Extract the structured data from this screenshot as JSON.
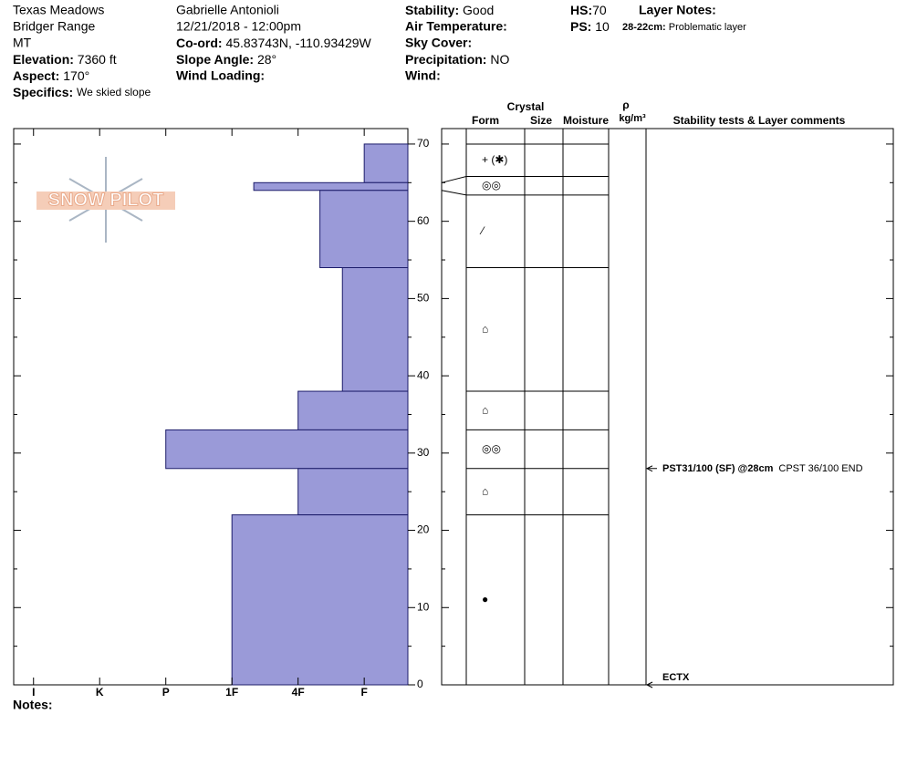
{
  "header": {
    "location": "Texas Meadows",
    "range": "Bridger Range",
    "state": "MT",
    "elevation": {
      "label": "Elevation:",
      "value": "7360 ft"
    },
    "aspect": {
      "label": "Aspect:",
      "value": "170°"
    },
    "specifics": {
      "label": "Specifics:",
      "value": "We skied slope"
    },
    "observer": "Gabrielle Antonioli",
    "datetime": "12/21/2018 - 12:00pm",
    "coord": {
      "label": "Co-ord:",
      "value": "45.83743N, -110.93429W"
    },
    "slope_angle": {
      "label": "Slope Angle:",
      "value": "28°"
    },
    "wind_loading": {
      "label": "Wind Loading:"
    },
    "stability": {
      "label": "Stability:",
      "value": "Good"
    },
    "air_temperature": {
      "label": "Air Temperature:"
    },
    "sky_cover": {
      "label": "Sky Cover:"
    },
    "precipitation": {
      "label": "Precipitation:",
      "value": "NO"
    },
    "wind": {
      "label": "Wind:"
    },
    "hs": {
      "label": "HS:",
      "value": "70"
    },
    "ps": {
      "label": "PS:",
      "value": "10"
    },
    "layer_notes": {
      "label": "Layer Notes:",
      "range": "28-22cm:",
      "text": "Problematic layer"
    }
  },
  "logo": "SNOW PILOT",
  "notes": "Notes:",
  "table_headers": {
    "crystal": "Crystal",
    "form": "Form",
    "size": "Size",
    "moisture": "Moisture",
    "rho": "ρ",
    "density_unit": "kg/m³",
    "comments": "Stability tests & Layer comments"
  },
  "chart_data": {
    "type": "hardness-profile",
    "color": "#9a9ad8",
    "ylim": [
      0,
      72
    ],
    "yticks": [
      0,
      10,
      20,
      30,
      40,
      50,
      60,
      70
    ],
    "minor_yticks": [
      5,
      15,
      25,
      35,
      45,
      55,
      65
    ],
    "xlim": [
      6.3,
      0.34
    ],
    "xticks": [
      {
        "value": 6,
        "label": "I"
      },
      {
        "value": 5,
        "label": "K"
      },
      {
        "value": 4,
        "label": "P"
      },
      {
        "value": 3,
        "label": "1F"
      },
      {
        "value": 2,
        "label": "4F"
      },
      {
        "value": 1,
        "label": "F"
      }
    ],
    "layers": [
      {
        "top": 70,
        "bottom": 65,
        "hardness": 1
      },
      {
        "top": 65,
        "bottom": 64,
        "hardness": 2.67
      },
      {
        "top": 64,
        "bottom": 54,
        "hardness": 1.67
      },
      {
        "top": 54,
        "bottom": 38,
        "hardness": 1.33
      },
      {
        "top": 38,
        "bottom": 33,
        "hardness": 2
      },
      {
        "top": 33,
        "bottom": 28,
        "hardness": 4
      },
      {
        "top": 28,
        "bottom": 22,
        "hardness": 2
      },
      {
        "top": 22,
        "bottom": 0,
        "hardness": 3
      }
    ],
    "crystal_layers": [
      {
        "top": 70,
        "bottom": 65.8,
        "form": "+ (✱)"
      },
      {
        "top": 65.8,
        "bottom": 63.4,
        "form": "◎◎"
      },
      {
        "top": 63.4,
        "bottom": 54,
        "form": "⁄"
      },
      {
        "top": 54,
        "bottom": 38,
        "form": "⌂"
      },
      {
        "top": 38,
        "bottom": 33,
        "form": "⌂"
      },
      {
        "top": 33,
        "bottom": 28,
        "form": "◎◎"
      },
      {
        "top": 28,
        "bottom": 22,
        "form": "⌂"
      },
      {
        "top": 22,
        "bottom": 0,
        "form": "●"
      }
    ],
    "tests": [
      {
        "depth": 28,
        "label": "PST31/100 (SF) @28cm",
        "comment": "CPST 36/100 END"
      },
      {
        "depth": 0,
        "label": "ECTX"
      }
    ]
  }
}
